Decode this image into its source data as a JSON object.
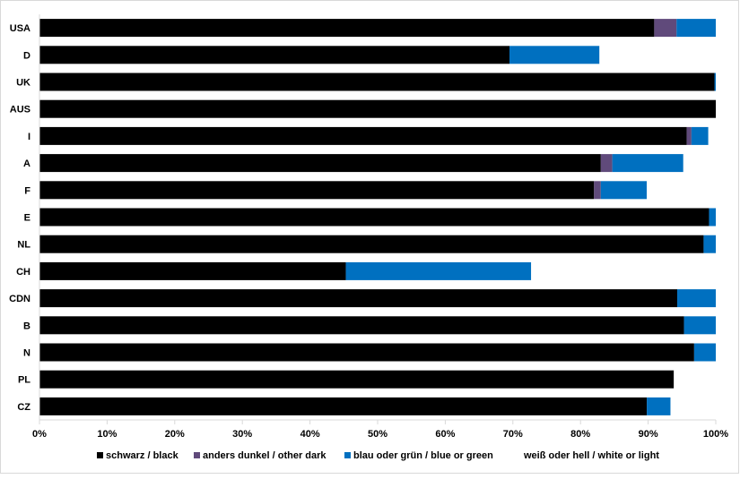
{
  "chart_data": {
    "type": "bar",
    "orientation": "horizontal",
    "stacked": true,
    "categories": [
      "USA",
      "D",
      "UK",
      "AUS",
      "I",
      "A",
      "F",
      "E",
      "NL",
      "CH",
      "CDN",
      "B",
      "N",
      "PL",
      "CZ"
    ],
    "series": [
      {
        "name": "schwarz / black",
        "color": "#000000",
        "values": [
          90.9,
          69.5,
          99.8,
          100,
          95.7,
          83.0,
          82.0,
          99.0,
          98.2,
          45.3,
          94.3,
          95.3,
          96.8,
          93.8,
          89.8
        ]
      },
      {
        "name": "anders dunkel / other dark",
        "color": "#604a7b",
        "values": [
          3.3,
          0,
          0,
          0,
          0.7,
          1.7,
          1.0,
          0,
          0,
          0,
          0,
          0,
          0,
          0,
          0
        ]
      },
      {
        "name": "blau oder grün / blue or green",
        "color": "#0070c0",
        "values": [
          5.8,
          13.3,
          0.2,
          0,
          2.5,
          10.5,
          6.8,
          1.0,
          1.8,
          27.4,
          5.7,
          4.7,
          3.2,
          0,
          3.5
        ]
      },
      {
        "name": "weiß oder hell / white or light",
        "color": "#ffffff",
        "values": [
          0,
          17.2,
          0,
          0,
          1.1,
          4.8,
          10.2,
          0,
          0,
          27.3,
          0,
          0,
          0,
          6.2,
          6.7
        ]
      }
    ],
    "xlim": [
      0,
      100
    ],
    "x_ticks": [
      "0%",
      "10%",
      "20%",
      "30%",
      "40%",
      "50%",
      "60%",
      "70%",
      "80%",
      "90%",
      "100%"
    ],
    "grid": false,
    "legend_position": "bottom"
  }
}
